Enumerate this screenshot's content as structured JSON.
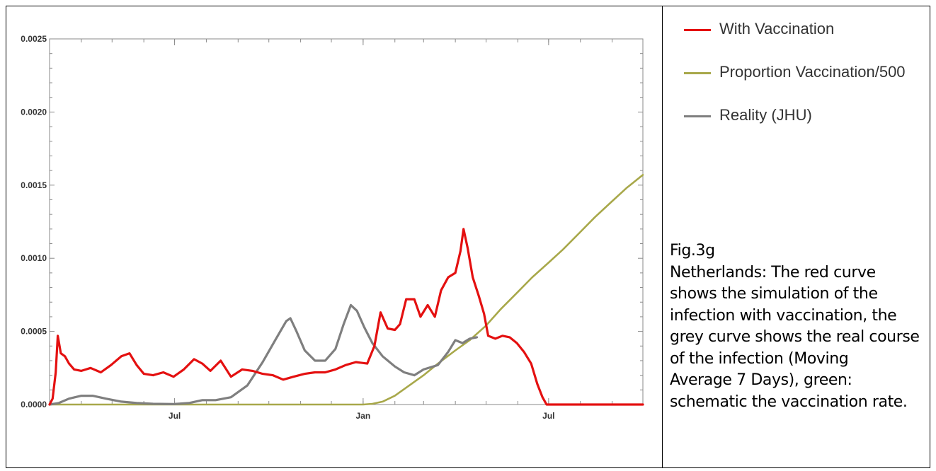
{
  "chart_data": {
    "type": "line",
    "title": "",
    "xlabel": "",
    "ylabel": "",
    "x_range": [
      "2020-03-01",
      "2021-10-01"
    ],
    "ylim": [
      0,
      0.0025
    ],
    "y_ticks": [
      "0.0000",
      "0.0005",
      "0.0010",
      "0.0015",
      "0.0020",
      "0.0025"
    ],
    "x_ticks": [
      {
        "date": "2020-07-01",
        "label": "Jul"
      },
      {
        "date": "2021-01-01",
        "label": "Jan"
      },
      {
        "date": "2021-07-01",
        "label": "Jul"
      }
    ],
    "grid": false,
    "legend_position": "right",
    "series": [
      {
        "name": "With Vaccination",
        "color": "#e41010",
        "points": [
          [
            "2020-03-01",
            0.0
          ],
          [
            "2020-03-04",
            4e-05
          ],
          [
            "2020-03-07",
            0.00022
          ],
          [
            "2020-03-09",
            0.00047
          ],
          [
            "2020-03-12",
            0.00035
          ],
          [
            "2020-03-16",
            0.00033
          ],
          [
            "2020-03-20",
            0.00028
          ],
          [
            "2020-03-25",
            0.00024
          ],
          [
            "2020-04-01",
            0.00023
          ],
          [
            "2020-04-10",
            0.00025
          ],
          [
            "2020-04-20",
            0.00022
          ],
          [
            "2020-04-30",
            0.00027
          ],
          [
            "2020-05-10",
            0.00033
          ],
          [
            "2020-05-18",
            0.00035
          ],
          [
            "2020-05-25",
            0.00027
          ],
          [
            "2020-06-01",
            0.00021
          ],
          [
            "2020-06-10",
            0.0002
          ],
          [
            "2020-06-20",
            0.00022
          ],
          [
            "2020-06-30",
            0.00019
          ],
          [
            "2020-07-10",
            0.00024
          ],
          [
            "2020-07-20",
            0.00031
          ],
          [
            "2020-07-28",
            0.00028
          ],
          [
            "2020-08-05",
            0.00023
          ],
          [
            "2020-08-15",
            0.0003
          ],
          [
            "2020-08-25",
            0.00019
          ],
          [
            "2020-09-05",
            0.00024
          ],
          [
            "2020-09-15",
            0.00023
          ],
          [
            "2020-09-25",
            0.00021
          ],
          [
            "2020-10-05",
            0.0002
          ],
          [
            "2020-10-15",
            0.00017
          ],
          [
            "2020-10-25",
            0.00019
          ],
          [
            "2020-11-05",
            0.00021
          ],
          [
            "2020-11-15",
            0.00022
          ],
          [
            "2020-11-25",
            0.00022
          ],
          [
            "2020-12-05",
            0.00024
          ],
          [
            "2020-12-15",
            0.00027
          ],
          [
            "2020-12-25",
            0.00029
          ],
          [
            "2021-01-05",
            0.00028
          ],
          [
            "2021-01-12",
            0.0004
          ],
          [
            "2021-01-18",
            0.00063
          ],
          [
            "2021-01-25",
            0.00052
          ],
          [
            "2021-02-01",
            0.00051
          ],
          [
            "2021-02-06",
            0.00055
          ],
          [
            "2021-02-12",
            0.00072
          ],
          [
            "2021-02-20",
            0.00072
          ],
          [
            "2021-02-26",
            0.0006
          ],
          [
            "2021-03-05",
            0.00068
          ],
          [
            "2021-03-12",
            0.0006
          ],
          [
            "2021-03-18",
            0.00078
          ],
          [
            "2021-03-25",
            0.00087
          ],
          [
            "2021-04-01",
            0.0009
          ],
          [
            "2021-04-06",
            0.00105
          ],
          [
            "2021-04-09",
            0.0012
          ],
          [
            "2021-04-13",
            0.00107
          ],
          [
            "2021-04-18",
            0.00087
          ],
          [
            "2021-04-24",
            0.00074
          ],
          [
            "2021-04-29",
            0.00062
          ],
          [
            "2021-05-03",
            0.00047
          ],
          [
            "2021-05-10",
            0.00045
          ],
          [
            "2021-05-17",
            0.00047
          ],
          [
            "2021-05-24",
            0.00046
          ],
          [
            "2021-05-31",
            0.00042
          ],
          [
            "2021-06-07",
            0.00036
          ],
          [
            "2021-06-14",
            0.00028
          ],
          [
            "2021-06-20",
            0.00014
          ],
          [
            "2021-06-25",
            5e-05
          ],
          [
            "2021-06-29",
            0.0
          ],
          [
            "2021-07-15",
            0.0
          ],
          [
            "2021-08-15",
            0.0
          ],
          [
            "2021-09-15",
            0.0
          ],
          [
            "2021-10-01",
            0.0
          ]
        ]
      },
      {
        "name": "Proportion Vaccination/500",
        "color": "#a8a84a",
        "points": [
          [
            "2020-03-01",
            0.0
          ],
          [
            "2020-10-01",
            0.0
          ],
          [
            "2021-01-01",
            0.0
          ],
          [
            "2021-01-10",
            5e-06
          ],
          [
            "2021-01-20",
            2e-05
          ],
          [
            "2021-02-01",
            6e-05
          ],
          [
            "2021-02-15",
            0.00013
          ],
          [
            "2021-03-01",
            0.0002
          ],
          [
            "2021-03-15",
            0.00028
          ],
          [
            "2021-04-01",
            0.00037
          ],
          [
            "2021-04-15",
            0.00044
          ],
          [
            "2021-05-01",
            0.00054
          ],
          [
            "2021-05-15",
            0.00065
          ],
          [
            "2021-06-01",
            0.00077
          ],
          [
            "2021-06-15",
            0.00087
          ],
          [
            "2021-07-01",
            0.00097
          ],
          [
            "2021-07-15",
            0.00106
          ],
          [
            "2021-08-01",
            0.00118
          ],
          [
            "2021-08-15",
            0.00128
          ],
          [
            "2021-09-01",
            0.00139
          ],
          [
            "2021-09-15",
            0.00148
          ],
          [
            "2021-10-01",
            0.00157
          ]
        ]
      },
      {
        "name": "Reality (JHU)",
        "color": "#7f7f7f",
        "points": [
          [
            "2020-03-01",
            0.0
          ],
          [
            "2020-03-10",
            1e-05
          ],
          [
            "2020-03-20",
            4e-05
          ],
          [
            "2020-04-01",
            6e-05
          ],
          [
            "2020-04-12",
            6e-05
          ],
          [
            "2020-04-25",
            4e-05
          ],
          [
            "2020-05-10",
            2e-05
          ],
          [
            "2020-05-25",
            1e-05
          ],
          [
            "2020-06-10",
            5e-06
          ],
          [
            "2020-06-30",
            3e-06
          ],
          [
            "2020-07-15",
            1e-05
          ],
          [
            "2020-07-28",
            3e-05
          ],
          [
            "2020-08-10",
            3e-05
          ],
          [
            "2020-08-25",
            5e-05
          ],
          [
            "2020-09-10",
            0.00013
          ],
          [
            "2020-09-25",
            0.00029
          ],
          [
            "2020-10-08",
            0.00045
          ],
          [
            "2020-10-18",
            0.00057
          ],
          [
            "2020-10-22",
            0.00059
          ],
          [
            "2020-10-28",
            0.0005
          ],
          [
            "2020-11-05",
            0.00037
          ],
          [
            "2020-11-15",
            0.0003
          ],
          [
            "2020-11-25",
            0.0003
          ],
          [
            "2020-12-05",
            0.00038
          ],
          [
            "2020-12-13",
            0.00055
          ],
          [
            "2020-12-20",
            0.00068
          ],
          [
            "2020-12-26",
            0.00064
          ],
          [
            "2021-01-02",
            0.00053
          ],
          [
            "2021-01-10",
            0.00042
          ],
          [
            "2021-01-20",
            0.00033
          ],
          [
            "2021-02-01",
            0.00026
          ],
          [
            "2021-02-10",
            0.00022
          ],
          [
            "2021-02-20",
            0.0002
          ],
          [
            "2021-03-01",
            0.00024
          ],
          [
            "2021-03-15",
            0.00027
          ],
          [
            "2021-03-25",
            0.00036
          ],
          [
            "2021-04-01",
            0.00044
          ],
          [
            "2021-04-08",
            0.00042
          ],
          [
            "2021-04-15",
            0.00045
          ],
          [
            "2021-04-22",
            0.00046
          ]
        ]
      }
    ]
  },
  "caption": {
    "lines": [
      "Fig.3g",
      "Netherlands: The red curve",
      "shows the simulation of the",
      "infection with vaccination, the",
      "grey curve shows the real course",
      "of the infection (Moving",
      "Average 7 Days), green:",
      "schematic the vaccination rate."
    ]
  }
}
